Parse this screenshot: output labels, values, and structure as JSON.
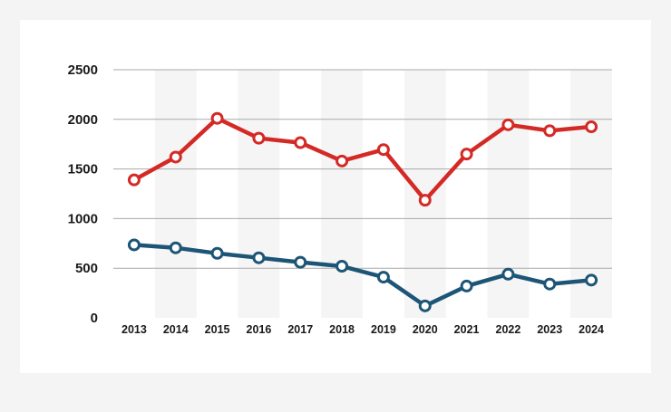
{
  "chart_data": {
    "type": "line",
    "x": [
      "2013",
      "2014",
      "2015",
      "2016",
      "2017",
      "2018",
      "2019",
      "2020",
      "2021",
      "2022",
      "2023",
      "2024"
    ],
    "ylim": [
      0,
      2500
    ],
    "yticks": [
      0,
      500,
      1000,
      1500,
      2000,
      2500
    ],
    "grid": true,
    "alternating_column_bands": true,
    "legend": "none",
    "series": [
      {
        "color": "#d42a26",
        "values": [
          1390,
          1620,
          2010,
          1810,
          1765,
          1580,
          1695,
          1185,
          1650,
          1945,
          1885,
          1925
        ]
      },
      {
        "color": "#1d5577",
        "values": [
          735,
          705,
          650,
          605,
          560,
          520,
          410,
          120,
          320,
          440,
          340,
          380
        ]
      }
    ]
  }
}
